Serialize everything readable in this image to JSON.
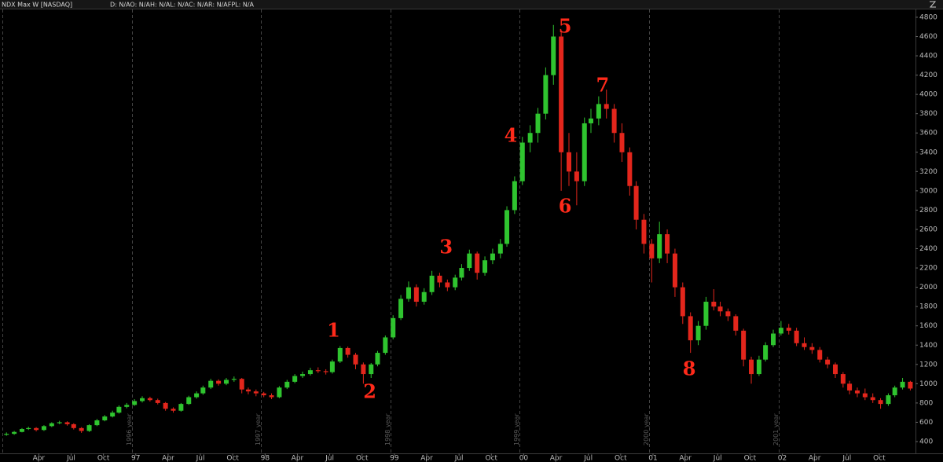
{
  "chart_data": {
    "type": "candlestick",
    "title": "NDX Max W [NASDAQ]",
    "subtitle": "D: N/AO: N/AH: N/AL: N/AC: N/AR: N/AFPL: N/A",
    "up_color": "#2fc42f",
    "down_color": "#e3261c",
    "xlim": [
      1995.95,
      2003.03
    ],
    "ylim": [
      294,
      4881
    ],
    "yticks": [
      400,
      600,
      800,
      1000,
      1200,
      1400,
      1600,
      1800,
      2000,
      2200,
      2400,
      2600,
      2800,
      3000,
      3200,
      3400,
      3600,
      3800,
      4000,
      4200,
      4400,
      4600,
      4800
    ],
    "xticks": [
      {
        "value": 1996.25,
        "label": "Apr"
      },
      {
        "value": 1996.5,
        "label": "Jul"
      },
      {
        "value": 1996.75,
        "label": "Oct"
      },
      {
        "value": 1997,
        "label": "97"
      },
      {
        "value": 1997.25,
        "label": "Apr"
      },
      {
        "value": 1997.5,
        "label": "Jul"
      },
      {
        "value": 1997.75,
        "label": "Oct"
      },
      {
        "value": 1998,
        "label": "98"
      },
      {
        "value": 1998.25,
        "label": "Apr"
      },
      {
        "value": 1998.5,
        "label": "Jul"
      },
      {
        "value": 1998.75,
        "label": "Oct"
      },
      {
        "value": 1999,
        "label": "99"
      },
      {
        "value": 1999.25,
        "label": "Apr"
      },
      {
        "value": 1999.5,
        "label": "Jul"
      },
      {
        "value": 1999.75,
        "label": "Oct"
      },
      {
        "value": 2000,
        "label": "00"
      },
      {
        "value": 2000.25,
        "label": "Apr"
      },
      {
        "value": 2000.5,
        "label": "Jul"
      },
      {
        "value": 2000.75,
        "label": "Oct"
      },
      {
        "value": 2001,
        "label": "01"
      },
      {
        "value": 2001.25,
        "label": "Apr"
      },
      {
        "value": 2001.5,
        "label": "Jul"
      },
      {
        "value": 2001.75,
        "label": "Oct"
      },
      {
        "value": 2002,
        "label": "02"
      },
      {
        "value": 2002.25,
        "label": "Apr"
      },
      {
        "value": 2002.5,
        "label": "Jul"
      },
      {
        "value": 2002.75,
        "label": "Oct"
      }
    ],
    "year_lines": [
      {
        "value": 1997,
        "label": "1996 year"
      },
      {
        "value": 1998,
        "label": "1997 year"
      },
      {
        "value": 1999,
        "label": "1998 year"
      },
      {
        "value": 2000,
        "label": "1999 year"
      },
      {
        "value": 2001,
        "label": "2000 year"
      },
      {
        "value": 2002,
        "label": "2001 year"
      }
    ],
    "annotations": [
      {
        "text": "1",
        "x": 1998.53,
        "y": 1541
      },
      {
        "text": "2",
        "x": 1998.81,
        "y": 905
      },
      {
        "text": "3",
        "x": 1999.4,
        "y": 2404
      },
      {
        "text": "4",
        "x": 1999.9,
        "y": 3561
      },
      {
        "text": "5",
        "x": 2000.32,
        "y": 4694
      },
      {
        "text": "6",
        "x": 2000.32,
        "y": 2828
      },
      {
        "text": "7",
        "x": 2000.61,
        "y": 4083
      },
      {
        "text": "8",
        "x": 2001.28,
        "y": 1141
      }
    ],
    "x": [
      1996.0,
      1996.06,
      1996.12,
      1996.17,
      1996.23,
      1996.29,
      1996.35,
      1996.41,
      1996.47,
      1996.52,
      1996.58,
      1996.64,
      1996.7,
      1996.76,
      1996.82,
      1996.87,
      1996.93,
      1996.99,
      1997.05,
      1997.11,
      1997.17,
      1997.23,
      1997.29,
      1997.35,
      1997.41,
      1997.47,
      1997.52,
      1997.58,
      1997.64,
      1997.7,
      1997.76,
      1997.82,
      1997.87,
      1997.93,
      1997.99,
      1998.05,
      1998.11,
      1998.17,
      1998.23,
      1998.29,
      1998.35,
      1998.41,
      1998.47,
      1998.52,
      1998.58,
      1998.64,
      1998.7,
      1998.76,
      1998.82,
      1998.87,
      1998.93,
      1998.99,
      1999.05,
      1999.11,
      1999.17,
      1999.23,
      1999.29,
      1999.35,
      1999.41,
      1999.47,
      1999.52,
      1999.58,
      1999.64,
      1999.7,
      1999.76,
      1999.82,
      1999.87,
      1999.93,
      1999.99,
      2000.05,
      2000.11,
      2000.17,
      2000.23,
      2000.29,
      2000.35,
      2000.41,
      2000.47,
      2000.52,
      2000.58,
      2000.64,
      2000.7,
      2000.76,
      2000.82,
      2000.87,
      2000.93,
      2000.99,
      2001.05,
      2001.11,
      2001.17,
      2001.23,
      2001.29,
      2001.35,
      2001.41,
      2001.47,
      2001.52,
      2001.58,
      2001.64,
      2001.7,
      2001.76,
      2001.82,
      2001.87,
      2001.93,
      2001.99,
      2002.05,
      2002.11,
      2002.17,
      2002.23,
      2002.29,
      2002.35,
      2002.41,
      2002.47,
      2002.52,
      2002.58,
      2002.64,
      2002.7,
      2002.76,
      2002.82,
      2002.87,
      2002.93,
      2002.99
    ],
    "open": [
      470,
      480,
      500,
      530,
      540,
      520,
      560,
      590,
      600,
      580,
      540,
      510,
      570,
      620,
      660,
      700,
      760,
      780,
      820,
      850,
      830,
      800,
      740,
      720,
      790,
      860,
      900,
      960,
      1030,
      1000,
      1040,
      1050,
      940,
      920,
      900,
      880,
      860,
      960,
      1020,
      1080,
      1100,
      1140,
      1130,
      1120,
      1230,
      1370,
      1300,
      1200,
      1100,
      1200,
      1320,
      1480,
      1680,
      1880,
      2000,
      1850,
      1950,
      2120,
      2050,
      2000,
      2100,
      2200,
      2350,
      2150,
      2280,
      2350,
      2450,
      2800,
      3100,
      3500,
      3600,
      3800,
      4200,
      4600,
      3400,
      3200,
      3100,
      3700,
      3750,
      3900,
      3850,
      3600,
      3400,
      3050,
      2700,
      2450,
      2300,
      2550,
      2350,
      2000,
      1700,
      1450,
      1600,
      1850,
      1800,
      1750,
      1700,
      1550,
      1250,
      1100,
      1250,
      1400,
      1520,
      1580,
      1550,
      1420,
      1380,
      1350,
      1250,
      1200,
      1100,
      1000,
      930,
      900,
      860,
      830,
      790,
      880,
      960,
      1020
    ],
    "high": [
      495,
      510,
      540,
      555,
      550,
      570,
      600,
      615,
      610,
      590,
      550,
      580,
      635,
      675,
      720,
      775,
      800,
      840,
      870,
      865,
      845,
      810,
      755,
      800,
      875,
      920,
      980,
      1050,
      1045,
      1060,
      1075,
      1060,
      960,
      940,
      915,
      900,
      975,
      1040,
      1100,
      1125,
      1165,
      1170,
      1150,
      1250,
      1390,
      1385,
      1320,
      1220,
      1215,
      1340,
      1500,
      1710,
      1920,
      2060,
      2030,
      1990,
      2170,
      2150,
      2080,
      2130,
      2240,
      2390,
      2370,
      2320,
      2400,
      2500,
      2840,
      3150,
      3560,
      3680,
      3860,
      4280,
      4720,
      4650,
      3600,
      3400,
      3760,
      3850,
      3980,
      4050,
      3900,
      3700,
      3450,
      3100,
      2760,
      2500,
      2680,
      2600,
      2400,
      2050,
      1740,
      1650,
      1900,
      1980,
      1850,
      1780,
      1720,
      1570,
      1280,
      1290,
      1430,
      1560,
      1650,
      1620,
      1580,
      1480,
      1420,
      1380,
      1280,
      1220,
      1120,
      1030,
      960,
      950,
      900,
      850,
      900,
      980,
      1060,
      1030
    ],
    "low": [
      460,
      470,
      495,
      520,
      505,
      510,
      550,
      580,
      565,
      525,
      490,
      500,
      560,
      610,
      650,
      690,
      745,
      770,
      805,
      815,
      785,
      720,
      700,
      710,
      780,
      845,
      885,
      945,
      980,
      985,
      1020,
      900,
      890,
      870,
      860,
      840,
      850,
      945,
      1005,
      1060,
      1085,
      1110,
      1095,
      1105,
      1215,
      1270,
      1150,
      1000,
      1060,
      1180,
      1300,
      1460,
      1660,
      1850,
      1800,
      1820,
      1920,
      2000,
      1960,
      1970,
      2070,
      2170,
      2080,
      2120,
      2240,
      2300,
      2420,
      2760,
      3060,
      3400,
      3500,
      3740,
      4100,
      3000,
      3050,
      2850,
      3050,
      3600,
      3680,
      3750,
      3500,
      3300,
      2950,
      2600,
      2350,
      2050,
      2250,
      2250,
      1900,
      1620,
      1320,
      1400,
      1560,
      1760,
      1700,
      1650,
      1500,
      1180,
      1000,
      1080,
      1230,
      1380,
      1500,
      1510,
      1390,
      1350,
      1310,
      1220,
      1160,
      1060,
      960,
      890,
      860,
      830,
      800,
      740,
      770,
      860,
      940,
      930
    ],
    "close": [
      480,
      500,
      530,
      540,
      520,
      560,
      590,
      600,
      580,
      540,
      510,
      570,
      620,
      660,
      700,
      760,
      780,
      820,
      850,
      830,
      800,
      740,
      720,
      790,
      860,
      900,
      960,
      1030,
      1000,
      1040,
      1050,
      940,
      920,
      900,
      880,
      860,
      960,
      1020,
      1080,
      1100,
      1140,
      1130,
      1120,
      1230,
      1370,
      1300,
      1200,
      1100,
      1200,
      1320,
      1480,
      1680,
      1880,
      2000,
      1850,
      1950,
      2120,
      2050,
      2000,
      2100,
      2200,
      2350,
      2150,
      2280,
      2350,
      2450,
      2800,
      3100,
      3500,
      3600,
      3800,
      4200,
      4600,
      3400,
      3200,
      3100,
      3700,
      3750,
      3900,
      3850,
      3600,
      3400,
      3050,
      2700,
      2450,
      2300,
      2550,
      2350,
      2000,
      1700,
      1450,
      1600,
      1850,
      1800,
      1750,
      1700,
      1550,
      1250,
      1100,
      1250,
      1400,
      1520,
      1580,
      1550,
      1420,
      1380,
      1350,
      1250,
      1200,
      1100,
      1000,
      930,
      900,
      860,
      830,
      790,
      880,
      960,
      1020,
      950
    ]
  }
}
